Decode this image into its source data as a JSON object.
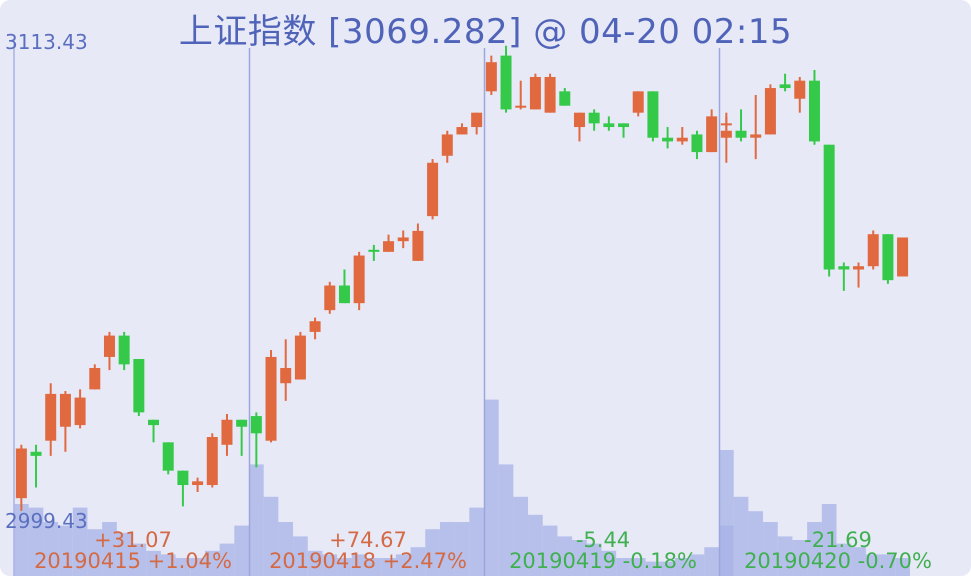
{
  "title": "上证指数 [3069.282] @ 04-20 02:15",
  "colors": {
    "up": "#e0693f",
    "down": "#35c94a",
    "volume": "#a7b1e6",
    "divider": "#9aa6dd",
    "axis_text": "#5a6fc0",
    "background": "#e8e9f7"
  },
  "chart_data": {
    "type": "candlestick",
    "title": "上证指数 [3069.282] @ 04-20 02:15",
    "ylim": [
      2999.43,
      3113.43
    ],
    "y_tick_labels": [
      "3113.43",
      "2999.43"
    ],
    "days": [
      {
        "date": "20190415",
        "change": "+31.07",
        "pct": "+1.04%",
        "direction": "up",
        "candles": [
          {
            "o": 3002.8,
            "h": 3015.8,
            "l": 2999.7,
            "c": 3014.9,
            "v": 40
          },
          {
            "o": 3014.1,
            "h": 3015.8,
            "l": 3005.4,
            "c": 3013.1,
            "v": 38
          },
          {
            "o": 3016.8,
            "h": 3030.8,
            "l": 3013.1,
            "c": 3028.2,
            "v": 30
          },
          {
            "o": 3020.2,
            "h": 3028.9,
            "l": 3014.1,
            "c": 3028.2,
            "v": 28
          },
          {
            "o": 3020.6,
            "h": 3029.3,
            "l": 3019.8,
            "c": 3027.3,
            "v": 38
          },
          {
            "o": 3029.3,
            "h": 3035.4,
            "l": 3029.3,
            "c": 3034.5,
            "v": 26
          },
          {
            "o": 3037.2,
            "h": 3043.3,
            "l": 3034.0,
            "c": 3042.4,
            "v": 30
          },
          {
            "o": 3042.4,
            "h": 3043.3,
            "l": 3034.0,
            "c": 3035.4,
            "v": 24
          },
          {
            "o": 3036.7,
            "h": 3036.7,
            "l": 3022.8,
            "c": 3023.7,
            "v": 18
          },
          {
            "o": 3021.9,
            "h": 3021.9,
            "l": 3016.4,
            "c": 3020.6,
            "v": 14
          },
          {
            "o": 3016.4,
            "h": 3016.4,
            "l": 3008.6,
            "c": 3009.5,
            "v": 12
          },
          {
            "o": 3009.5,
            "h": 3009.5,
            "l": 3000.8,
            "c": 3006.0,
            "v": 10
          },
          {
            "o": 3006.0,
            "h": 3007.8,
            "l": 3004.3,
            "c": 3006.9,
            "v": 10
          },
          {
            "o": 3006.0,
            "h": 3018.6,
            "l": 3005.4,
            "c": 3017.7,
            "v": 14
          },
          {
            "o": 3015.8,
            "h": 3023.3,
            "l": 3013.1,
            "c": 3021.9,
            "v": 18
          },
          {
            "o": 3021.9,
            "h": 3021.9,
            "l": 3013.1,
            "c": 3020.2,
            "v": 28
          }
        ]
      },
      {
        "date": "20190418",
        "change": "+74.67",
        "pct": "+2.47%",
        "direction": "up",
        "candles": [
          {
            "o": 3022.8,
            "h": 3023.7,
            "l": 3010.3,
            "c": 3018.6,
            "v": 62
          },
          {
            "o": 3016.8,
            "h": 3038.9,
            "l": 3016.4,
            "c": 3037.2,
            "v": 44
          },
          {
            "o": 3030.8,
            "h": 3041.5,
            "l": 3026.5,
            "c": 3034.5,
            "v": 30
          },
          {
            "o": 3031.7,
            "h": 3043.3,
            "l": 3031.7,
            "c": 3042.4,
            "v": 22
          },
          {
            "o": 3043.3,
            "h": 3046.8,
            "l": 3041.5,
            "c": 3045.9,
            "v": 14
          },
          {
            "o": 3048.6,
            "h": 3055.5,
            "l": 3047.7,
            "c": 3054.6,
            "v": 12
          },
          {
            "o": 3054.6,
            "h": 3058.5,
            "l": 3050.3,
            "c": 3050.3,
            "v": 10
          },
          {
            "o": 3050.3,
            "h": 3062.8,
            "l": 3048.6,
            "c": 3061.9,
            "v": 12
          },
          {
            "o": 3063.3,
            "h": 3064.5,
            "l": 3060.6,
            "c": 3062.8,
            "v": 10
          },
          {
            "o": 3062.8,
            "h": 3067.0,
            "l": 3062.8,
            "c": 3065.4,
            "v": 10
          },
          {
            "o": 3065.4,
            "h": 3068.0,
            "l": 3063.7,
            "c": 3066.3,
            "v": 12
          },
          {
            "o": 3060.6,
            "h": 3069.7,
            "l": 3060.6,
            "c": 3067.9,
            "v": 16
          },
          {
            "o": 3071.5,
            "h": 3085.4,
            "l": 3070.7,
            "c": 3084.5,
            "v": 26
          },
          {
            "o": 3086.2,
            "h": 3092.3,
            "l": 3084.5,
            "c": 3091.4,
            "v": 30
          },
          {
            "o": 3091.4,
            "h": 3094.1,
            "l": 3091.4,
            "c": 3093.2,
            "v": 30
          },
          {
            "o": 3093.2,
            "h": 3096.7,
            "l": 3091.4,
            "c": 3096.7,
            "v": 38
          }
        ]
      },
      {
        "date": "20190419",
        "change": "-5.44",
        "pct": "-0.18%",
        "direction": "down",
        "candles": [
          {
            "o": 3101.9,
            "h": 3110.6,
            "l": 3101.0,
            "c": 3109.0,
            "v": 98
          },
          {
            "o": 3110.6,
            "h": 3113.0,
            "l": 3096.7,
            "c": 3097.5,
            "v": 62
          },
          {
            "o": 3098.4,
            "h": 3104.5,
            "l": 3097.5,
            "c": 3098.4,
            "v": 44
          },
          {
            "o": 3097.5,
            "h": 3106.2,
            "l": 3097.5,
            "c": 3105.4,
            "v": 34
          },
          {
            "o": 3096.7,
            "h": 3106.2,
            "l": 3096.7,
            "c": 3105.4,
            "v": 28
          },
          {
            "o": 3101.9,
            "h": 3102.7,
            "l": 3098.4,
            "c": 3098.4,
            "v": 22
          },
          {
            "o": 3093.2,
            "h": 3096.7,
            "l": 3089.7,
            "c": 3096.7,
            "v": 20
          },
          {
            "o": 3096.7,
            "h": 3097.5,
            "l": 3092.3,
            "c": 3094.1,
            "v": 18
          },
          {
            "o": 3094.1,
            "h": 3095.8,
            "l": 3092.3,
            "c": 3093.2,
            "v": 14
          },
          {
            "o": 3094.1,
            "h": 3094.1,
            "l": 3090.6,
            "c": 3093.2,
            "v": 10
          },
          {
            "o": 3096.7,
            "h": 3101.9,
            "l": 3095.8,
            "c": 3101.9,
            "v": 10
          },
          {
            "o": 3101.9,
            "h": 3101.9,
            "l": 3089.7,
            "c": 3090.6,
            "v": 8
          },
          {
            "o": 3090.6,
            "h": 3093.2,
            "l": 3088.0,
            "c": 3089.7,
            "v": 8
          },
          {
            "o": 3089.7,
            "h": 3093.2,
            "l": 3088.9,
            "c": 3090.6,
            "v": 10
          },
          {
            "o": 3091.4,
            "h": 3092.3,
            "l": 3085.4,
            "c": 3087.1,
            "v": 12
          },
          {
            "o": 3087.1,
            "h": 3097.5,
            "l": 3087.1,
            "c": 3095.8,
            "v": 16
          },
          {
            "o": 3094.1,
            "h": 3095.8,
            "l": 3092.3,
            "c": 3094.1,
            "v": 28
          }
        ]
      },
      {
        "date": "20190420",
        "change": "-21.69",
        "pct": "-0.70%",
        "direction": "down",
        "candles": [
          {
            "o": 3090.6,
            "h": 3096.7,
            "l": 3084.5,
            "c": 3092.3,
            "v": 70
          },
          {
            "o": 3092.3,
            "h": 3097.5,
            "l": 3089.7,
            "c": 3090.6,
            "v": 44
          },
          {
            "o": 3090.6,
            "h": 3101.0,
            "l": 3085.4,
            "c": 3091.4,
            "v": 36
          },
          {
            "o": 3091.4,
            "h": 3103.6,
            "l": 3091.4,
            "c": 3102.7,
            "v": 30
          },
          {
            "o": 3103.6,
            "h": 3106.2,
            "l": 3101.9,
            "c": 3102.7,
            "v": 22
          },
          {
            "o": 3100.1,
            "h": 3105.4,
            "l": 3096.7,
            "c": 3104.5,
            "v": 20
          },
          {
            "o": 3104.5,
            "h": 3107.1,
            "l": 3088.9,
            "c": 3089.7,
            "v": 30
          },
          {
            "o": 3088.9,
            "h": 3088.9,
            "l": 3056.8,
            "c": 3058.5,
            "v": 40
          },
          {
            "o": 3059.3,
            "h": 3060.2,
            "l": 3053.3,
            "c": 3058.5,
            "v": 18
          },
          {
            "o": 3058.5,
            "h": 3060.2,
            "l": 3054.1,
            "c": 3059.3,
            "v": 16
          },
          {
            "o": 3059.3,
            "h": 3068.0,
            "l": 3058.5,
            "c": 3067.1,
            "v": 12
          },
          {
            "o": 3067.1,
            "h": 3067.1,
            "l": 3055.0,
            "c": 3055.9,
            "v": 12
          },
          {
            "o": 3056.8,
            "h": 3066.3,
            "l": 3056.8,
            "c": 3066.3,
            "v": 10
          }
        ]
      }
    ]
  },
  "labels": {
    "d0_change": "+31.07",
    "d0_label": "20190415 +1.04%",
    "d1_change": "+74.67",
    "d1_label": "20190418 +2.47%",
    "d2_change": "-5.44",
    "d2_label": "20190419 -0.18%",
    "d3_change": "-21.69",
    "d3_label": "20190420 -0.70%",
    "ymax": "3113.43",
    "ymin": "2999.43"
  }
}
